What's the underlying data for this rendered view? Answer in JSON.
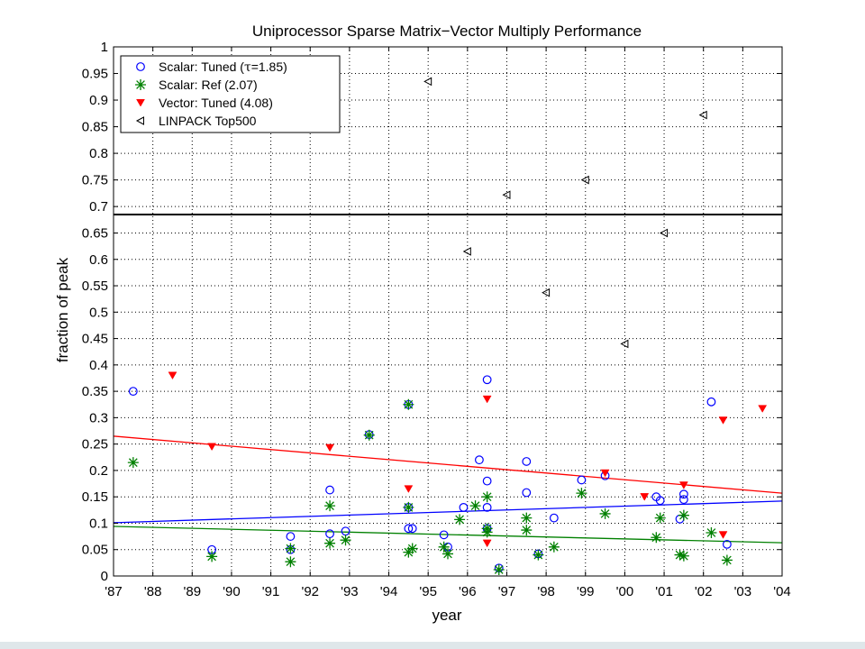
{
  "chart_data": {
    "type": "scatter",
    "title": "Uniprocessor Sparse Matrix−Vector Multiply Performance",
    "xlabel": "year",
    "ylabel": "fraction of peak",
    "x_tick_labels": [
      "'87",
      "'88",
      "'89",
      "'90",
      "'91",
      "'92",
      "'93",
      "'94",
      "'95",
      "'96",
      "'97",
      "'98",
      "'99",
      "'00",
      "'01",
      "'02",
      "'03",
      "'04"
    ],
    "xlim": [
      1987,
      2004
    ],
    "ylim": [
      0,
      1
    ],
    "broken_axis_at": 0.685,
    "lower_ylim": [
      0,
      0.685
    ],
    "upper_ylim": [
      0.685,
      1
    ],
    "lower_y_ticks": [
      0,
      0.05,
      0.1,
      0.15,
      0.2,
      0.25,
      0.3,
      0.35,
      0.4,
      0.45,
      0.5,
      0.55,
      0.6,
      0.65
    ],
    "lower_y_tick_labels": [
      "0",
      "0.05",
      "0.1",
      "0.15",
      "0.2",
      "0.25",
      "0.3",
      "0.35",
      "0.4",
      "0.45",
      "0.5",
      "0.55",
      "0.6",
      "0.65"
    ],
    "upper_y_ticks": [
      0.7,
      0.75,
      0.8,
      0.85,
      0.9,
      0.95,
      1
    ],
    "upper_y_tick_labels": [
      "0.7",
      "0.75",
      "0.8",
      "0.85",
      "0.9",
      "0.95",
      "1"
    ],
    "grid": true,
    "legend_position": "top-left",
    "series": [
      {
        "name": "Scalar: Tuned (τ=1.85)",
        "legend_prefix": "Scalar: Tuned (",
        "legend_symbol": "τ",
        "legend_suffix": "=1.85)",
        "marker": "circle",
        "color": "#0000ff",
        "points": [
          [
            1987.5,
            0.35
          ],
          [
            1989.5,
            0.05
          ],
          [
            1991.5,
            0.075
          ],
          [
            1991.5,
            0.05
          ],
          [
            1992.5,
            0.163
          ],
          [
            1992.5,
            0.08
          ],
          [
            1992.9,
            0.085
          ],
          [
            1993.5,
            0.268
          ],
          [
            1994.5,
            0.325
          ],
          [
            1994.5,
            0.13
          ],
          [
            1994.5,
            0.09
          ],
          [
            1994.6,
            0.09
          ],
          [
            1995.4,
            0.078
          ],
          [
            1995.5,
            0.055
          ],
          [
            1995.9,
            0.13
          ],
          [
            1996.3,
            0.22
          ],
          [
            1996.5,
            0.372
          ],
          [
            1996.5,
            0.18
          ],
          [
            1996.5,
            0.13
          ],
          [
            1996.5,
            0.09
          ],
          [
            1996.8,
            0.015
          ],
          [
            1997.5,
            0.217
          ],
          [
            1997.5,
            0.158
          ],
          [
            1998.2,
            0.11
          ],
          [
            1997.8,
            0.042
          ],
          [
            1998.9,
            0.182
          ],
          [
            1999.5,
            0.19
          ],
          [
            2000.8,
            0.15
          ],
          [
            2000.9,
            0.143
          ],
          [
            2001.4,
            0.108
          ],
          [
            2001.5,
            0.155
          ],
          [
            2001.5,
            0.145
          ],
          [
            2002.2,
            0.33
          ],
          [
            2002.6,
            0.06
          ]
        ]
      },
      {
        "name": "Scalar: Ref (2.07)",
        "legend_prefix": "Scalar: Ref (2.07)",
        "legend_symbol": "",
        "legend_suffix": "",
        "marker": "star",
        "color": "#008000",
        "points": [
          [
            1987.5,
            0.215
          ],
          [
            1989.5,
            0.037
          ],
          [
            1991.5,
            0.052
          ],
          [
            1991.5,
            0.027
          ],
          [
            1992.5,
            0.133
          ],
          [
            1992.5,
            0.062
          ],
          [
            1992.9,
            0.068
          ],
          [
            1993.5,
            0.267
          ],
          [
            1994.5,
            0.325
          ],
          [
            1994.5,
            0.13
          ],
          [
            1994.5,
            0.045
          ],
          [
            1994.6,
            0.052
          ],
          [
            1995.4,
            0.055
          ],
          [
            1995.5,
            0.042
          ],
          [
            1995.8,
            0.107
          ],
          [
            1996.2,
            0.133
          ],
          [
            1996.5,
            0.15
          ],
          [
            1996.5,
            0.09
          ],
          [
            1996.5,
            0.083
          ],
          [
            1996.8,
            0.012
          ],
          [
            1997.5,
            0.11
          ],
          [
            1997.5,
            0.087
          ],
          [
            1997.8,
            0.04
          ],
          [
            1998.2,
            0.055
          ],
          [
            1998.9,
            0.157
          ],
          [
            1999.5,
            0.118
          ],
          [
            2000.8,
            0.073
          ],
          [
            2000.9,
            0.11
          ],
          [
            2001.4,
            0.04
          ],
          [
            2001.5,
            0.038
          ],
          [
            2001.5,
            0.115
          ],
          [
            2002.2,
            0.082
          ],
          [
            2002.6,
            0.03
          ]
        ]
      },
      {
        "name": "Vector: Tuned (4.08)",
        "legend_prefix": "Vector: Tuned (4.08)",
        "legend_symbol": "",
        "legend_suffix": "",
        "marker": "triangle-down",
        "color": "#ff0000",
        "points": [
          [
            1988.5,
            0.38
          ],
          [
            1989.5,
            0.245
          ],
          [
            1992.5,
            0.243
          ],
          [
            1994.5,
            0.165
          ],
          [
            1996.5,
            0.335
          ],
          [
            1996.5,
            0.062
          ],
          [
            1999.5,
            0.195
          ],
          [
            2000.5,
            0.15
          ],
          [
            2001.5,
            0.172
          ],
          [
            2002.5,
            0.295
          ],
          [
            2002.5,
            0.078
          ],
          [
            2003.5,
            0.317
          ]
        ]
      },
      {
        "name": "LINPACK Top500",
        "legend_prefix": "LINPACK Top500",
        "legend_symbol": "",
        "legend_suffix": "",
        "marker": "triangle-left",
        "color": "#000000",
        "points": [
          [
            1995,
            0.935
          ],
          [
            1996,
            0.615
          ],
          [
            1997,
            0.722
          ],
          [
            1998,
            0.537
          ],
          [
            1999,
            0.75
          ],
          [
            2000,
            0.44
          ],
          [
            2001,
            0.65
          ],
          [
            2002,
            0.872
          ]
        ]
      }
    ],
    "trend_lines": [
      {
        "series": "Scalar: Tuned (τ=1.85)",
        "color": "#0000ff",
        "from": [
          1987,
          0.101
        ],
        "to": [
          2004,
          0.142
        ]
      },
      {
        "series": "Scalar: Ref (2.07)",
        "color": "#008000",
        "from": [
          1987,
          0.094
        ],
        "to": [
          2004,
          0.063
        ]
      },
      {
        "series": "Vector: Tuned (4.08)",
        "color": "#ff0000",
        "from": [
          1987,
          0.265
        ],
        "to": [
          2004,
          0.157
        ]
      }
    ]
  }
}
